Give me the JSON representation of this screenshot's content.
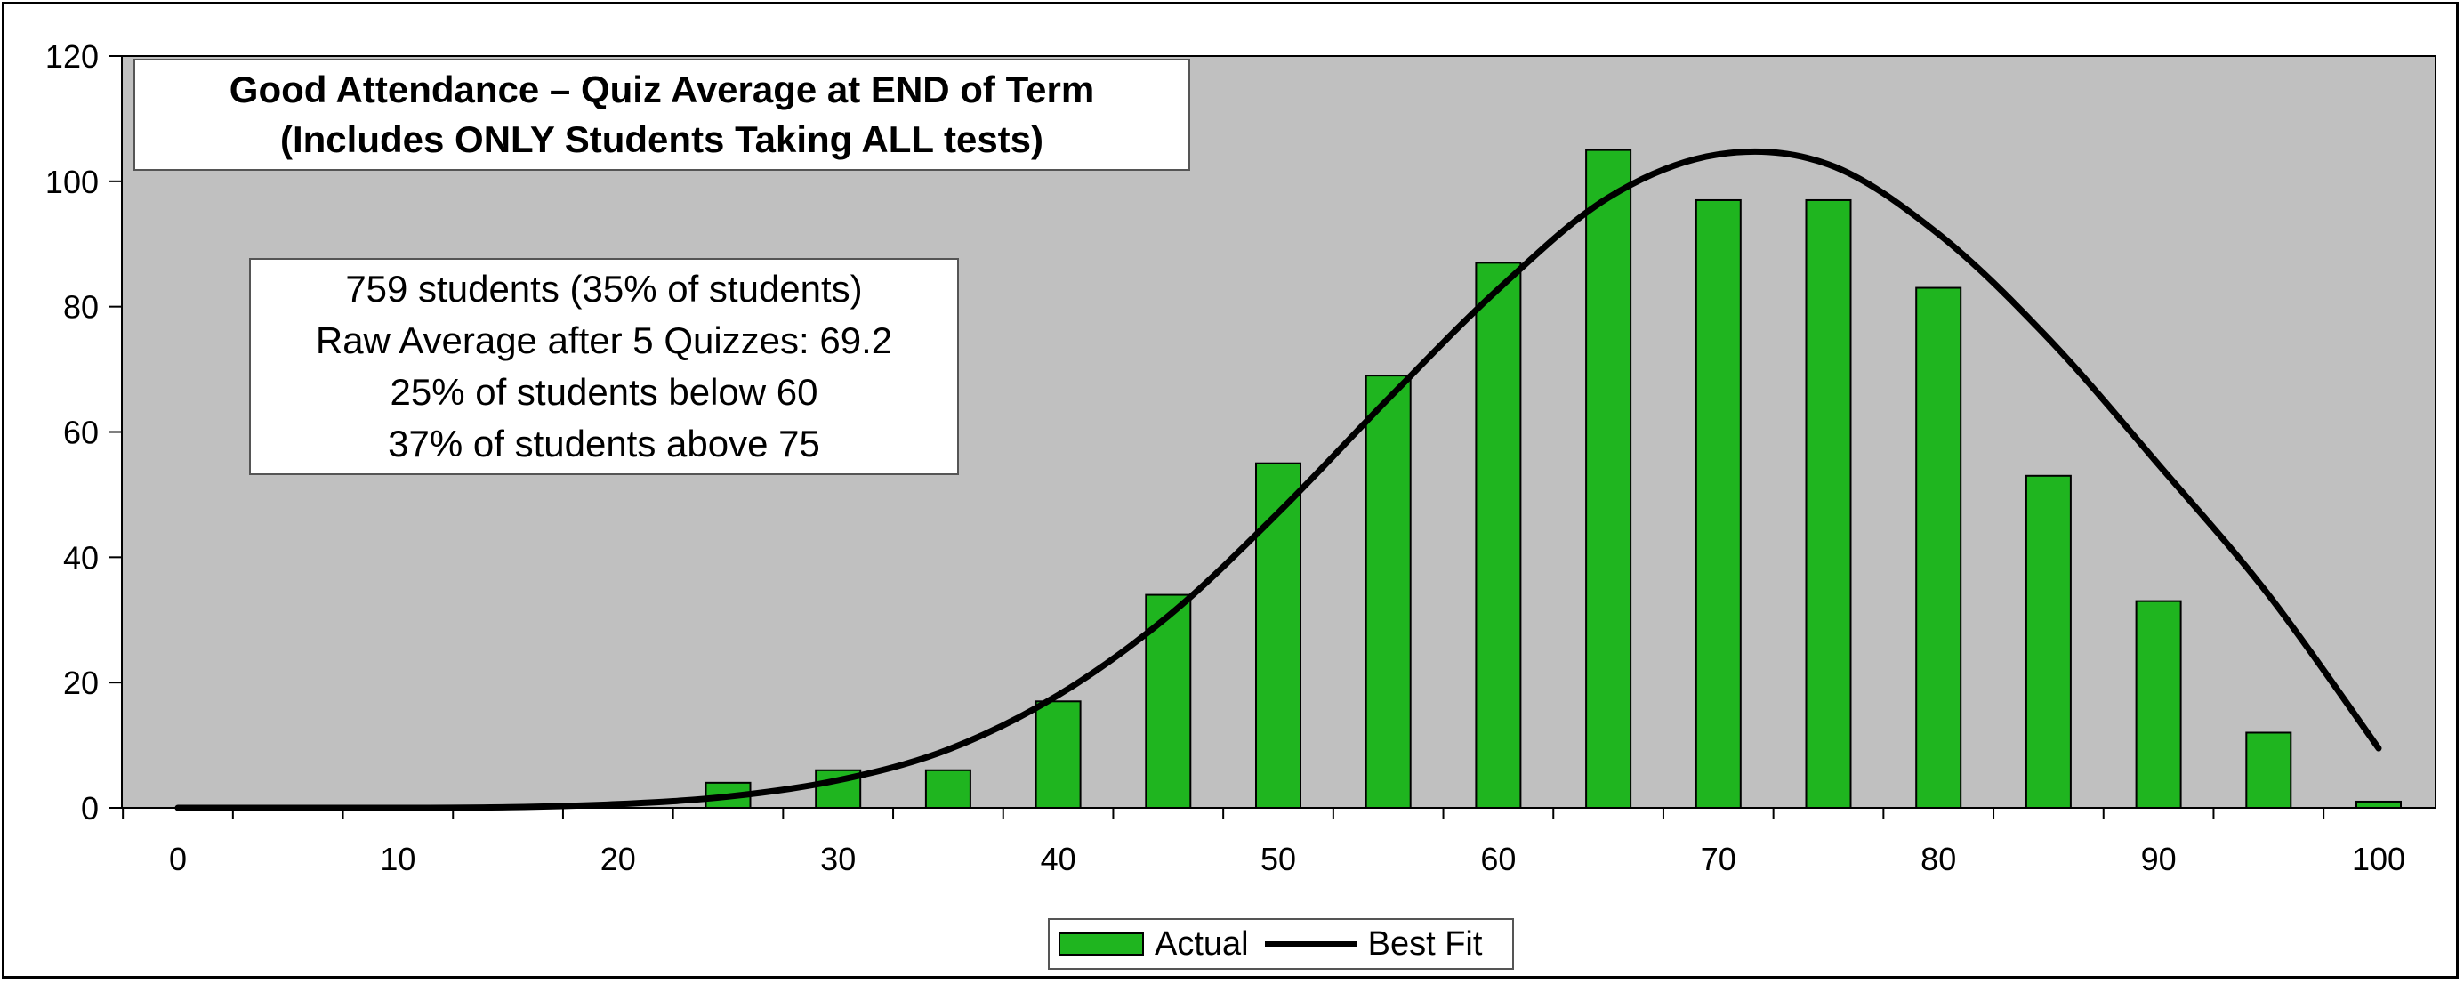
{
  "chart_data": {
    "type": "bar",
    "title": "Good Attendance – Quiz Average at END of Term",
    "subtitle": "(Includes ONLY Students Taking ALL tests)",
    "annotation_lines": [
      "759 students (35% of students)",
      "Raw Average after 5 Quizzes: 69.2",
      "25% of students below 60",
      "37% of students above 75"
    ],
    "x": [
      0,
      5,
      10,
      15,
      20,
      25,
      30,
      35,
      40,
      45,
      50,
      55,
      60,
      65,
      70,
      75,
      80,
      85,
      90,
      95,
      100
    ],
    "x_tick_labels": [
      "0",
      "10",
      "20",
      "30",
      "40",
      "50",
      "60",
      "70",
      "80",
      "90",
      "100"
    ],
    "xlim": [
      0,
      100
    ],
    "ylim": [
      0,
      120
    ],
    "y_ticks": [
      0,
      20,
      40,
      60,
      80,
      100,
      120
    ],
    "series": [
      {
        "name": "Actual",
        "type": "bar",
        "color": "#1fb51f",
        "values": [
          0,
          0,
          0,
          0,
          0,
          4,
          6,
          6,
          17,
          34,
          55,
          69,
          87,
          105,
          97,
          97,
          83,
          53,
          33,
          12,
          1
        ]
      },
      {
        "name": "Best Fit",
        "type": "line",
        "color": "#000000",
        "values": [
          0,
          0,
          0,
          0.1,
          0.6,
          1.8,
          4.4,
          9.3,
          18.0,
          30.6,
          47.1,
          65.3,
          82.8,
          97.4,
          104.3,
          102.7,
          91.6,
          74.9,
          54.8,
          34.0,
          9.5
        ]
      }
    ],
    "plot_background": "#c0c0c0",
    "legend": {
      "position": "bottom",
      "items": [
        "Actual",
        "Best Fit"
      ]
    },
    "grid": false
  }
}
